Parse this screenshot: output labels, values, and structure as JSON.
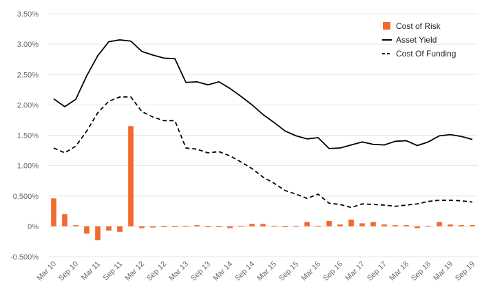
{
  "chart_data": {
    "type": "bar",
    "title": "",
    "xlabel": "",
    "ylabel": "",
    "ylim": [
      -0.005,
      0.035
    ],
    "yticks": [
      -0.005,
      0,
      0.005,
      0.01,
      0.015,
      0.02,
      0.025,
      0.03,
      0.035
    ],
    "ytick_labels": [
      "-0.500%",
      "0%",
      "0.500%",
      "1.00%",
      "1.50%",
      "2.00%",
      "2.50%",
      "3.00%",
      "3.50%"
    ],
    "grid": "horizontal",
    "legend_position": "top-right",
    "colors": {
      "bar": "#f26a2b",
      "line": "#000000",
      "grid": "#e6e6e6",
      "text": "#666666"
    },
    "x": [
      "Mar 10",
      "Jun 10",
      "Sep 10",
      "Dec 10",
      "Mar 11",
      "Jun 11",
      "Sep 11",
      "Dec 11",
      "Mar 12",
      "Jun 12",
      "Sep 12",
      "Dec 12",
      "Mar 13",
      "Jun 13",
      "Sep 13",
      "Dec 13",
      "Mar 14",
      "Jun 14",
      "Sep 14",
      "Dec 14",
      "Mar 15",
      "Jun 15",
      "Sep 15",
      "Dec 15",
      "Mar 16",
      "Jun 16",
      "Sep 16",
      "Dec 16",
      "Mar 17",
      "Jun 17",
      "Sep 17",
      "Dec 17",
      "Mar 18",
      "Jun 18",
      "Sep 18",
      "Dec 18",
      "Mar 19",
      "Jun 19",
      "Sep 19"
    ],
    "xtick_labels": [
      "Mar 10",
      "Sep 10",
      "Mar 11",
      "Sep 11",
      "Mar 12",
      "Sep 12",
      "Mar 13",
      "Sep 13",
      "Mar 14",
      "Sep 14",
      "Mar 15",
      "Sep 15",
      "Mar 16",
      "Sep 16",
      "Mar 17",
      "Sep 17",
      "Mar 18",
      "Sep 18",
      "Mar 19",
      "Sep 19"
    ],
    "series": [
      {
        "name": "Cost of Risk",
        "kind": "bar",
        "values": [
          0.0046,
          0.002,
          0.0002,
          -0.0012,
          -0.0023,
          -0.0007,
          -0.0009,
          0.0165,
          -0.0003,
          -0.0002,
          -0.0001,
          -0.0001,
          0.0001,
          0.0002,
          -0.0001,
          0.0,
          -0.0003,
          0.0001,
          0.0004,
          0.0004,
          0.0001,
          0.0,
          0.0001,
          0.0007,
          0.0001,
          0.0009,
          0.0003,
          0.0011,
          0.0005,
          0.0007,
          0.0003,
          0.0002,
          0.0002,
          -0.0003,
          0.0001,
          0.0007,
          0.0003,
          0.0002,
          0.0002
        ]
      },
      {
        "name": "Asset Yield",
        "kind": "line",
        "style": "solid",
        "values": [
          0.021,
          0.0197,
          0.0209,
          0.0248,
          0.0281,
          0.0304,
          0.0307,
          0.0305,
          0.0288,
          0.0282,
          0.0277,
          0.0276,
          0.0237,
          0.0238,
          0.0233,
          0.0238,
          0.0227,
          0.0214,
          0.02,
          0.0184,
          0.0171,
          0.0157,
          0.0149,
          0.0144,
          0.0146,
          0.0128,
          0.0129,
          0.0134,
          0.0139,
          0.0135,
          0.0134,
          0.014,
          0.0141,
          0.0133,
          0.0139,
          0.0149,
          0.0151,
          0.0148,
          0.0143
        ]
      },
      {
        "name": "Cost Of Funding",
        "kind": "line",
        "style": "dashed",
        "values": [
          0.0129,
          0.0121,
          0.0132,
          0.0157,
          0.0187,
          0.0206,
          0.0213,
          0.0213,
          0.0189,
          0.018,
          0.0174,
          0.0174,
          0.0129,
          0.0127,
          0.0121,
          0.0123,
          0.0116,
          0.0106,
          0.0095,
          0.0081,
          0.0071,
          0.0059,
          0.0053,
          0.0046,
          0.0053,
          0.0038,
          0.0036,
          0.0031,
          0.0037,
          0.0036,
          0.0035,
          0.0033,
          0.0035,
          0.0037,
          0.0041,
          0.0043,
          0.0043,
          0.0042,
          0.004
        ]
      }
    ]
  }
}
